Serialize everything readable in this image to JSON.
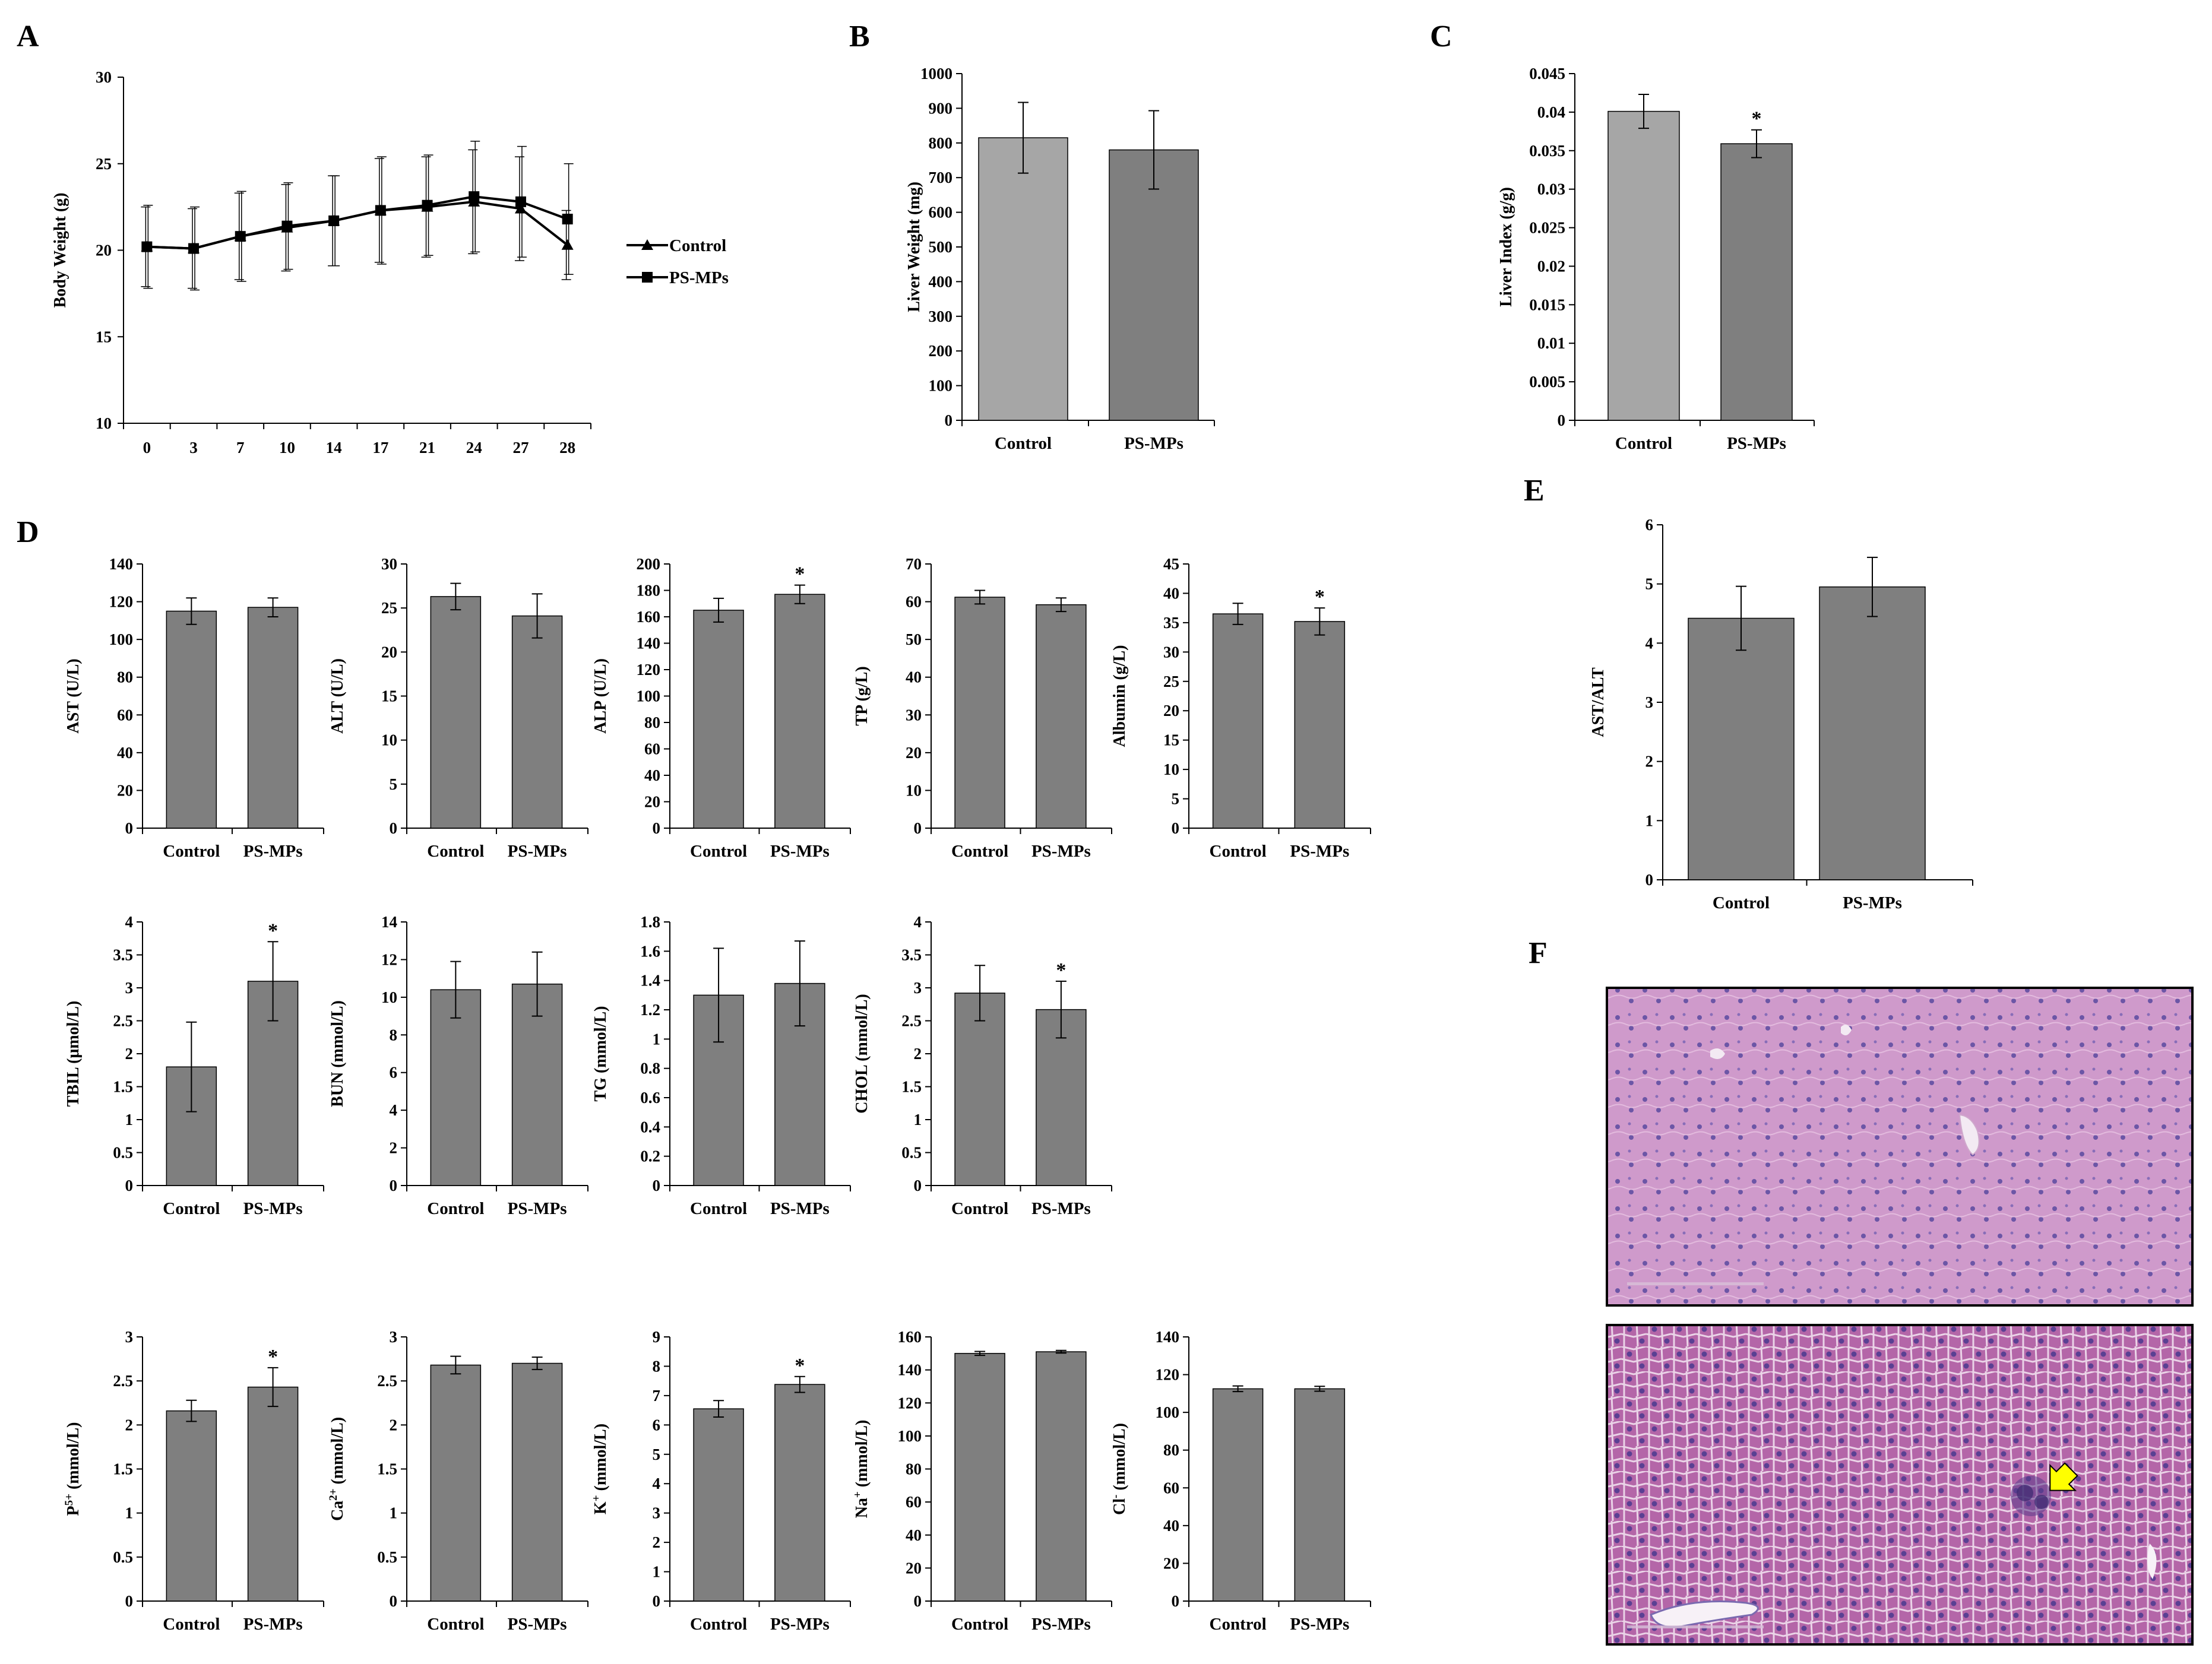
{
  "panels": {
    "A": "A",
    "B": "B",
    "C": "C",
    "D": "D",
    "E": "E",
    "F": "F"
  },
  "colors": {
    "control": "#a6a6a6",
    "ps": "#7f7f7f",
    "d": "#7f7f7f",
    "axis": "#000000",
    "histo_bg": "#c98fc0",
    "arrow": "#ffff00"
  },
  "chart_data": [
    {
      "id": "A",
      "type": "line",
      "title": "",
      "xlabel": "",
      "ylabel": "Body Weight (g)",
      "ylim": [
        10,
        30
      ],
      "yticks": [
        10,
        15,
        20,
        25,
        30
      ],
      "categories": [
        "0",
        "3",
        "7",
        "10",
        "14",
        "17",
        "21",
        "24",
        "27",
        "28"
      ],
      "series": [
        {
          "name": "Control",
          "marker": "triangle",
          "values": [
            20.2,
            20.1,
            20.8,
            21.3,
            21.7,
            22.3,
            22.5,
            22.8,
            22.4,
            20.3
          ],
          "errors": [
            2.3,
            2.3,
            2.5,
            2.5,
            2.6,
            3.0,
            2.9,
            3.0,
            3.0,
            2.0
          ]
        },
        {
          "name": "PS-MPs",
          "marker": "square",
          "values": [
            20.2,
            20.1,
            20.8,
            21.4,
            21.7,
            22.3,
            22.6,
            23.1,
            22.8,
            21.8
          ],
          "errors": [
            2.4,
            2.4,
            2.6,
            2.5,
            2.6,
            3.1,
            2.9,
            3.2,
            3.2,
            3.2
          ]
        }
      ]
    },
    {
      "id": "B",
      "type": "bar",
      "ylabel": "Liver Weight (mg)",
      "ylim": [
        0,
        1000
      ],
      "yticks": [
        0,
        100,
        200,
        300,
        400,
        500,
        600,
        700,
        800,
        900,
        1000
      ],
      "categories": [
        "Control",
        "PS-MPs"
      ],
      "values": [
        815,
        780
      ],
      "errors": [
        102,
        113
      ],
      "sig": [
        "",
        ""
      ]
    },
    {
      "id": "C",
      "type": "bar",
      "ylabel": "Liver Index (g/g)",
      "ylim": [
        0,
        0.045
      ],
      "yticks": [
        "0",
        "0.005",
        "0.01",
        "0.015",
        "0.02",
        "0.025",
        "0.03",
        "0.035",
        "0.04",
        "0.045"
      ],
      "categories": [
        "Control",
        "PS-MPs"
      ],
      "values": [
        0.0401,
        0.0359
      ],
      "errors": [
        0.0022,
        0.0018
      ],
      "sig": [
        "",
        "*"
      ]
    },
    {
      "id": "D1",
      "type": "bar",
      "ylabel": "AST (U/L)",
      "ylim": [
        0,
        140
      ],
      "yticks": [
        0,
        20,
        40,
        60,
        80,
        100,
        120,
        140
      ],
      "categories": [
        "Control",
        "PS-MPs"
      ],
      "values": [
        115,
        117
      ],
      "errors": [
        7,
        5
      ],
      "sig": [
        "",
        ""
      ]
    },
    {
      "id": "D2",
      "type": "bar",
      "ylabel": "ALT (U/L)",
      "ylim": [
        0,
        30
      ],
      "yticks": [
        0,
        5,
        10,
        15,
        20,
        25,
        30
      ],
      "categories": [
        "Control",
        "PS-MPs"
      ],
      "values": [
        26.3,
        24.1
      ],
      "errors": [
        1.5,
        2.5
      ],
      "sig": [
        "",
        ""
      ]
    },
    {
      "id": "D3",
      "type": "bar",
      "ylabel": "ALP (U/L)",
      "ylim": [
        0,
        200
      ],
      "yticks": [
        0,
        20,
        40,
        60,
        80,
        100,
        120,
        140,
        160,
        180,
        200
      ],
      "categories": [
        "Control",
        "PS-MPs"
      ],
      "values": [
        165,
        177
      ],
      "errors": [
        9,
        7
      ],
      "sig": [
        "",
        "*"
      ]
    },
    {
      "id": "D4",
      "type": "bar",
      "ylabel": "TP (g/L)",
      "ylim": [
        0,
        70
      ],
      "yticks": [
        0,
        10,
        20,
        30,
        40,
        50,
        60,
        70
      ],
      "categories": [
        "Control",
        "PS-MPs"
      ],
      "values": [
        61.2,
        59.2
      ],
      "errors": [
        1.8,
        1.8
      ],
      "sig": [
        "",
        ""
      ]
    },
    {
      "id": "D5",
      "type": "bar",
      "ylabel": "Albumin  (g/L)",
      "ylim": [
        0,
        45
      ],
      "yticks": [
        0,
        5,
        10,
        15,
        20,
        25,
        30,
        35,
        40,
        45
      ],
      "categories": [
        "Control",
        "PS-MPs"
      ],
      "values": [
        36.5,
        35.2
      ],
      "errors": [
        1.8,
        2.3
      ],
      "sig": [
        "",
        "*"
      ]
    },
    {
      "id": "D6",
      "type": "bar",
      "ylabel": "TBIL (μmol/L)",
      "ylim": [
        0,
        4
      ],
      "yticks": [
        "0",
        "0.5",
        "1",
        "1.5",
        "2",
        "2.5",
        "3",
        "3.5",
        "4"
      ],
      "categories": [
        "Control",
        "PS-MPs"
      ],
      "values": [
        1.8,
        3.1
      ],
      "errors": [
        0.68,
        0.6
      ],
      "sig": [
        "",
        "*"
      ]
    },
    {
      "id": "D7",
      "type": "bar",
      "ylabel": "BUN (mmol/L)",
      "ylim": [
        0,
        14
      ],
      "yticks": [
        0,
        2,
        4,
        6,
        8,
        10,
        12,
        14
      ],
      "categories": [
        "Control",
        "PS-MPs"
      ],
      "values": [
        10.4,
        10.7
      ],
      "errors": [
        1.5,
        1.7
      ],
      "sig": [
        "",
        ""
      ]
    },
    {
      "id": "D8",
      "type": "bar",
      "ylabel": "TG (mmol/L)",
      "ylim": [
        0,
        1.8
      ],
      "yticks": [
        "0",
        "0.2",
        "0.4",
        "0.6",
        "0.8",
        "1",
        "1.2",
        "1.4",
        "1.6",
        "1.8"
      ],
      "categories": [
        "Control",
        "PS-MPs"
      ],
      "values": [
        1.3,
        1.38
      ],
      "errors": [
        0.32,
        0.29
      ],
      "sig": [
        "",
        ""
      ]
    },
    {
      "id": "D9",
      "type": "bar",
      "ylabel": "CHOL (mmol/L)",
      "ylim": [
        0,
        4
      ],
      "yticks": [
        "0",
        "0.5",
        "1",
        "1.5",
        "2",
        "2.5",
        "3",
        "3.5",
        "4"
      ],
      "categories": [
        "Control",
        "PS-MPs"
      ],
      "values": [
        2.92,
        2.67
      ],
      "errors": [
        0.42,
        0.43
      ],
      "sig": [
        "",
        "*"
      ]
    },
    {
      "id": "D10",
      "type": "bar",
      "ylabel": "P5+ (mmol/L)",
      "ylabel_base": "P",
      "ylabel_sup": "5+",
      "ylabel_rest": " (mmol/L)",
      "ylim": [
        0,
        3
      ],
      "yticks": [
        "0",
        "0.5",
        "1",
        "1.5",
        "2",
        "2.5",
        "3"
      ],
      "categories": [
        "Control",
        "PS-MPs"
      ],
      "values": [
        2.16,
        2.43
      ],
      "errors": [
        0.12,
        0.22
      ],
      "sig": [
        "",
        "*"
      ]
    },
    {
      "id": "D11",
      "type": "bar",
      "ylabel": "Ca2+ (mmol/L)",
      "ylabel_base": "Ca",
      "ylabel_sup": "2+",
      "ylabel_rest": " (mmol/L)",
      "ylim": [
        0,
        3
      ],
      "yticks": [
        "0",
        "0.5",
        "1",
        "1.5",
        "2",
        "2.5",
        "3"
      ],
      "categories": [
        "Control",
        "PS-MPs"
      ],
      "values": [
        2.68,
        2.7
      ],
      "errors": [
        0.1,
        0.07
      ],
      "sig": [
        "",
        ""
      ]
    },
    {
      "id": "D12",
      "type": "bar",
      "ylabel": "K+ (mmol/L)",
      "ylabel_base": "K",
      "ylabel_sup": "+",
      "ylabel_rest": " (mmol/L)",
      "ylim": [
        0,
        9
      ],
      "yticks": [
        0,
        1,
        2,
        3,
        4,
        5,
        6,
        7,
        8,
        9
      ],
      "categories": [
        "Control",
        "PS-MPs"
      ],
      "values": [
        6.55,
        7.38
      ],
      "errors": [
        0.28,
        0.27
      ],
      "sig": [
        "",
        "*"
      ]
    },
    {
      "id": "D13",
      "type": "bar",
      "ylabel": "Na+ (mmol/L)",
      "ylabel_base": "Na",
      "ylabel_sup": "+",
      "ylabel_rest": " (mmol/L)",
      "ylim": [
        0,
        160
      ],
      "yticks": [
        0,
        20,
        40,
        60,
        80,
        100,
        120,
        140,
        160
      ],
      "categories": [
        "Control",
        "PS-MPs"
      ],
      "values": [
        150,
        151
      ],
      "errors": [
        1.2,
        0.8
      ],
      "sig": [
        "",
        ""
      ]
    },
    {
      "id": "D14",
      "type": "bar",
      "ylabel": "Cl- (mmol/L)",
      "ylabel_base": "Cl",
      "ylabel_sup": "-",
      "ylabel_rest": " (mmol/L)",
      "ylim": [
        0,
        140
      ],
      "yticks": [
        0,
        20,
        40,
        60,
        80,
        100,
        120,
        140
      ],
      "categories": [
        "Control",
        "PS-MPs"
      ],
      "values": [
        112.5,
        112.5
      ],
      "errors": [
        1.5,
        1.3
      ],
      "sig": [
        "",
        ""
      ]
    },
    {
      "id": "E",
      "type": "bar",
      "ylabel": "AST/ALT",
      "ylim": [
        0,
        6
      ],
      "yticks": [
        0,
        1,
        2,
        3,
        4,
        5,
        6
      ],
      "categories": [
        "Control",
        "PS-MPs"
      ],
      "values": [
        4.42,
        4.95
      ],
      "errors": [
        0.54,
        0.5
      ],
      "sig": [
        "",
        ""
      ]
    }
  ],
  "histology": {
    "images": [
      {
        "label": "liver-section-control",
        "description_none": ""
      },
      {
        "label": "liver-section-ps-mps",
        "description_none": ""
      }
    ]
  }
}
